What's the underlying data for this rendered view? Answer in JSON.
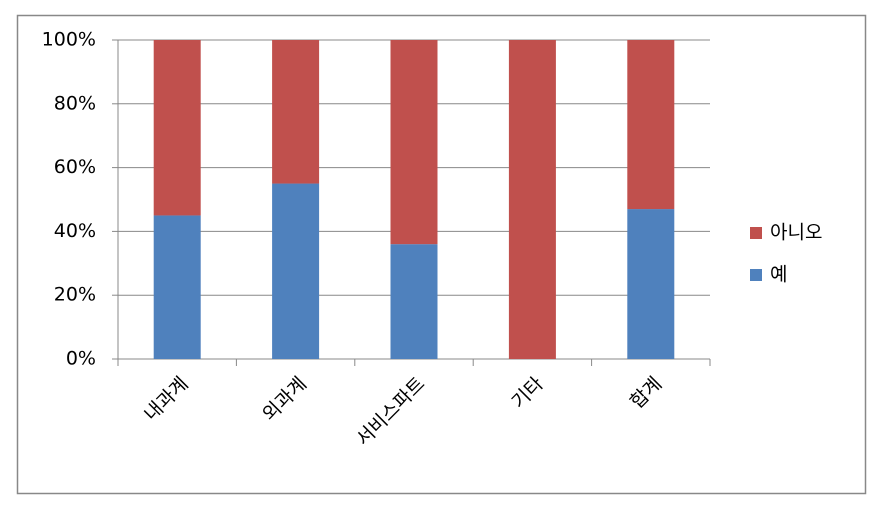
{
  "chart_data": {
    "type": "stacked_bar",
    "categories": [
      "내과계",
      "외과계",
      "서비스파트",
      "기타",
      "합계"
    ],
    "series": [
      {
        "name": "예",
        "color": "#4f81bd",
        "values": [
          45,
          55,
          36,
          0,
          47
        ]
      },
      {
        "name": "아니오",
        "color": "#c0504d",
        "values": [
          55,
          45,
          64,
          100,
          53
        ]
      }
    ],
    "ylim": [
      0,
      100
    ],
    "yticks": [
      {
        "value": 0,
        "label": "0%"
      },
      {
        "value": 20,
        "label": "20%"
      },
      {
        "value": 40,
        "label": "40%"
      },
      {
        "value": 60,
        "label": "60%"
      },
      {
        "value": 80,
        "label": "80%"
      },
      {
        "value": 100,
        "label": "100%"
      }
    ],
    "grid": true,
    "legend": "right"
  }
}
